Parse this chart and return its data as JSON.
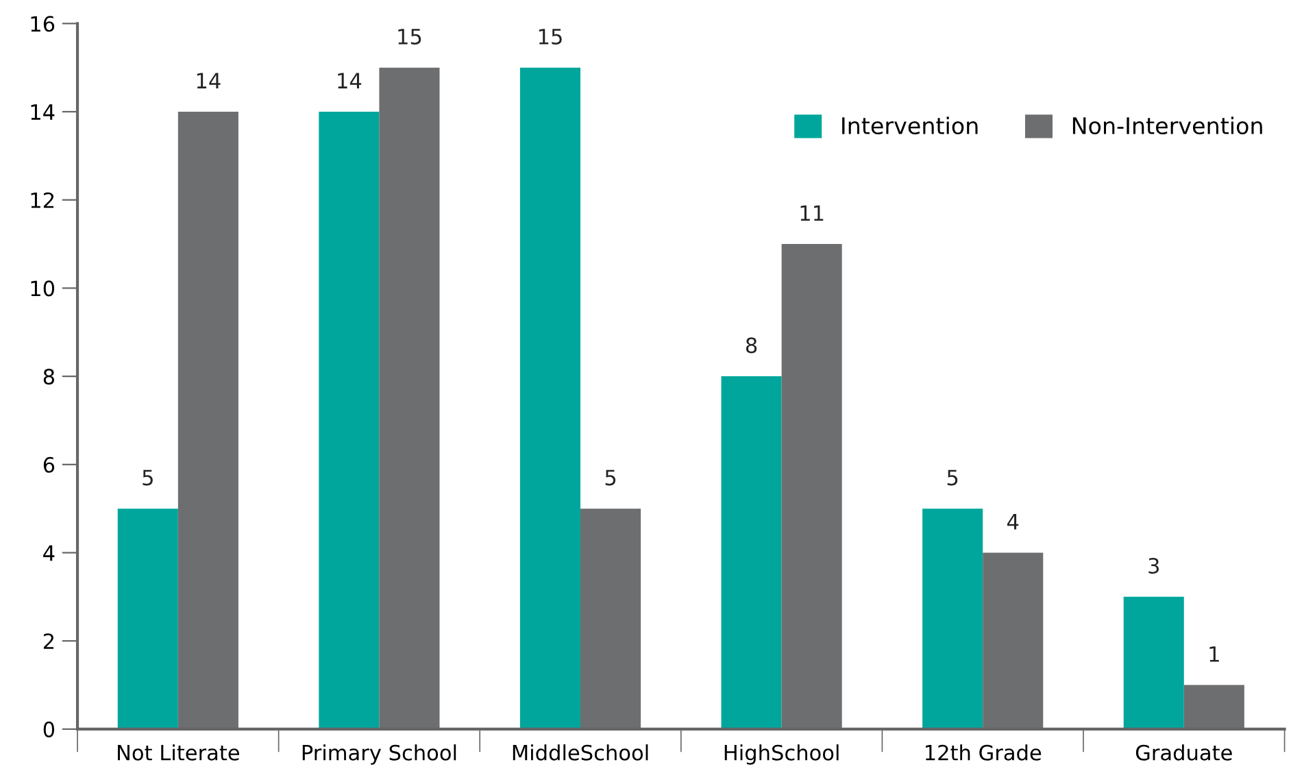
{
  "chart_data": {
    "type": "bar",
    "categories": [
      "Not Literate",
      "Primary School",
      "MiddleSchool",
      "HighSchool",
      "12th Grade",
      "Graduate"
    ],
    "series": [
      {
        "name": "Intervention",
        "color": "#00a69c",
        "values": [
          5,
          14,
          15,
          8,
          5,
          3
        ]
      },
      {
        "name": "Non-Intervention",
        "color": "#6d6e70",
        "values": [
          14,
          15,
          5,
          11,
          4,
          1
        ]
      }
    ],
    "ylim": [
      0,
      16
    ],
    "yticks": [
      0,
      2,
      4,
      6,
      8,
      10,
      12,
      14,
      16
    ],
    "data_labels": true,
    "legend": "top right",
    "grid": false
  }
}
